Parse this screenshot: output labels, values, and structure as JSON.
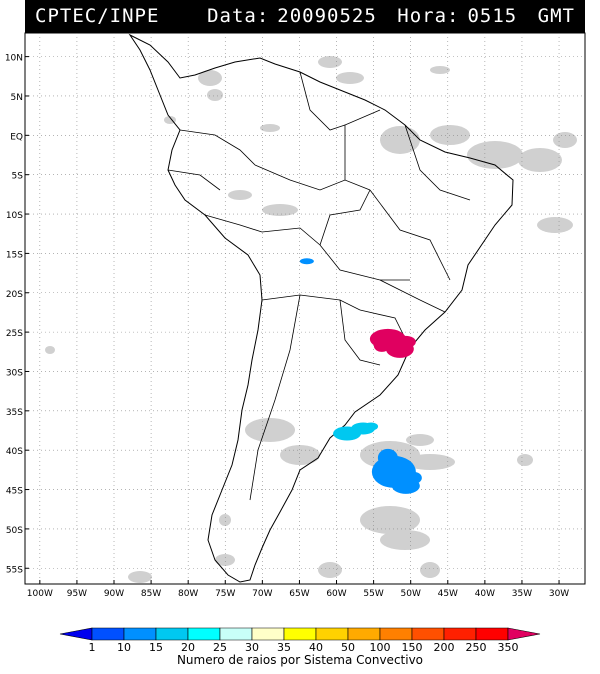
{
  "header": {
    "org": "CPTEC/INPE",
    "date_label": "Data:",
    "date_value": "20090525",
    "hour_label": "Hora:",
    "hour_value": "0515",
    "tz": "GMT"
  },
  "map": {
    "lat_labels": [
      "10N",
      "5N",
      "EQ",
      "5S",
      "10S",
      "15S",
      "20S",
      "25S",
      "30S",
      "35S",
      "40S",
      "45S",
      "50S",
      "55S"
    ],
    "lon_labels": [
      "100W",
      "95W",
      "90W",
      "85W",
      "80W",
      "75W",
      "70W",
      "65W",
      "60W",
      "55W",
      "50W",
      "45W",
      "40W",
      "35W",
      "30W"
    ],
    "lat_values": [
      10,
      5,
      0,
      -5,
      -10,
      -15,
      -20,
      -25,
      -30,
      -35,
      -40,
      -45,
      -50,
      -55
    ],
    "lon_values": [
      -100,
      -95,
      -90,
      -85,
      -80,
      -75,
      -70,
      -65,
      -60,
      -55,
      -50,
      -45,
      -40,
      -35,
      -30
    ],
    "clusters": [
      {
        "name": "cluster-bolivia",
        "lon": -64.0,
        "lat": -16.0,
        "level": 10
      },
      {
        "name": "cluster-brazil-south",
        "lon": -52.0,
        "lat": -26.5,
        "level": 350
      },
      {
        "name": "cluster-argentina-coast",
        "lon": -57.5,
        "lat": -37.5,
        "level": 15
      },
      {
        "name": "cluster-atlantic",
        "lon": -52.0,
        "lat": -42.5,
        "level": 10
      }
    ]
  },
  "legend": {
    "title": "Numero de raios por Sistema Convectivo",
    "ticks": [
      "1",
      "10",
      "15",
      "20",
      "25",
      "30",
      "35",
      "40",
      "50",
      "100",
      "150",
      "200",
      "250",
      "350"
    ],
    "colors": [
      "#0000ee",
      "#0050ff",
      "#0090ff",
      "#00c8f0",
      "#00ffff",
      "#c8fff8",
      "#ffffc8",
      "#ffff00",
      "#ffd200",
      "#ffaa00",
      "#ff8000",
      "#ff5000",
      "#ff2000",
      "#ff0000",
      "#e00060"
    ]
  }
}
